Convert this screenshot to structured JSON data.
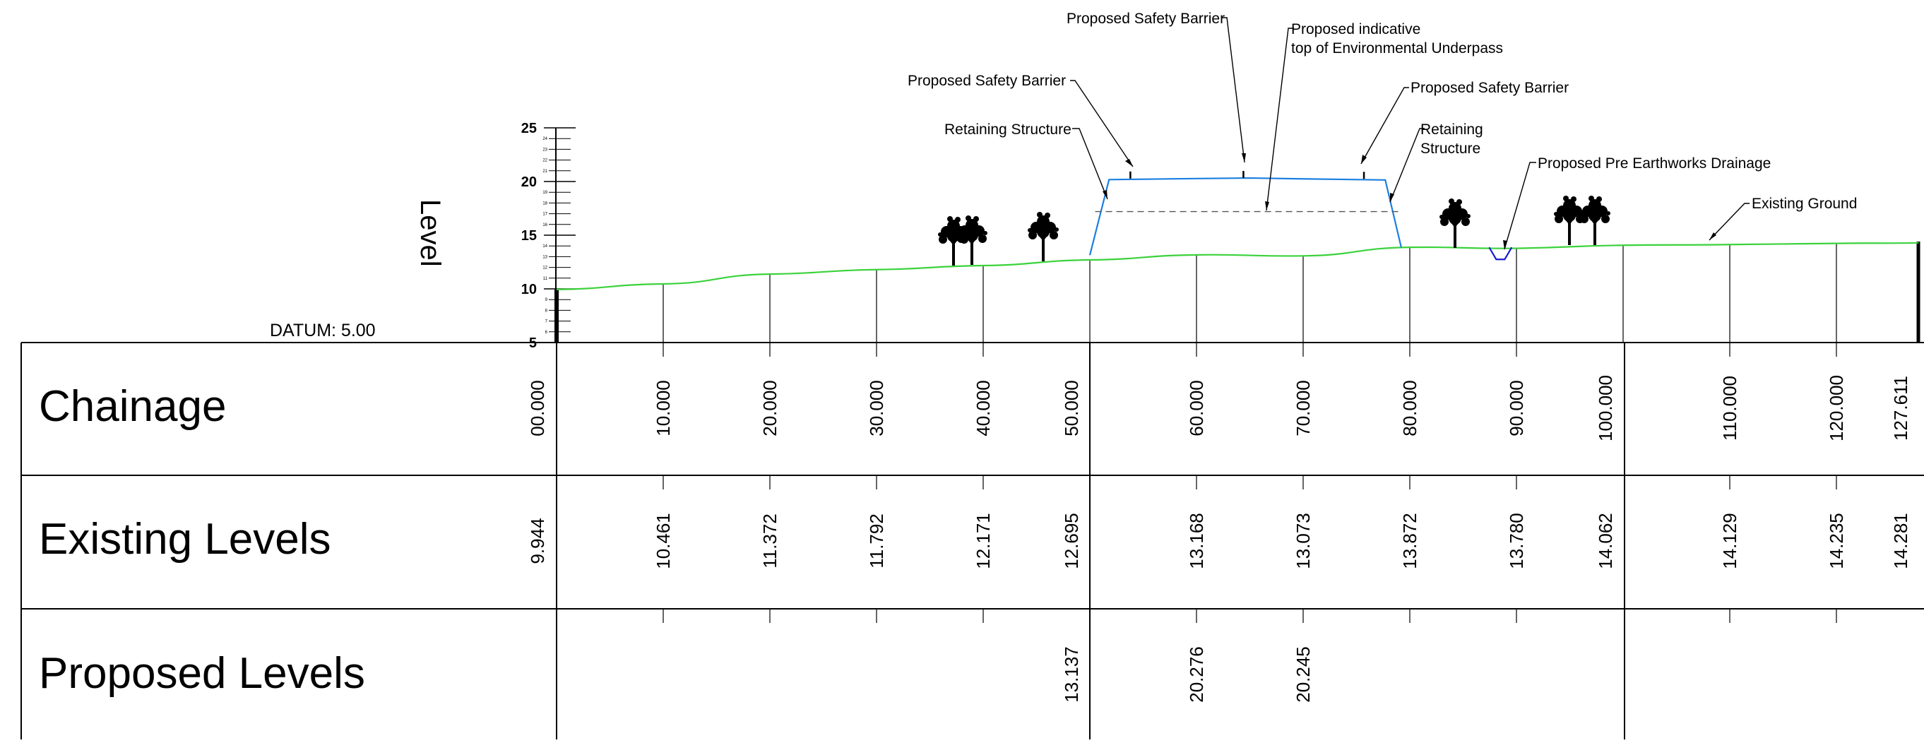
{
  "datum": {
    "label": "DATUM: 5.00",
    "value": 5.0
  },
  "axis": {
    "title": "Level",
    "min": 5,
    "max": 25,
    "major_ticks": [
      "5",
      "10",
      "15",
      "20",
      "25"
    ],
    "minor_step": 1
  },
  "table": {
    "row_labels": {
      "chainage": "Chainage",
      "existing": "Existing Levels",
      "proposed": "Proposed Levels"
    },
    "columns": [
      {
        "chainage": "00.000",
        "existing": "9.944",
        "proposed": ""
      },
      {
        "chainage": "10.000",
        "existing": "10.461",
        "proposed": ""
      },
      {
        "chainage": "20.000",
        "existing": "11.372",
        "proposed": ""
      },
      {
        "chainage": "30.000",
        "existing": "11.792",
        "proposed": ""
      },
      {
        "chainage": "40.000",
        "existing": "12.171",
        "proposed": ""
      },
      {
        "chainage": "50.000",
        "existing": "12.695",
        "proposed": "13.137"
      },
      {
        "chainage": "60.000",
        "existing": "13.168",
        "proposed": "20.276"
      },
      {
        "chainage": "70.000",
        "existing": "13.073",
        "proposed": "20.245"
      },
      {
        "chainage": "80.000",
        "existing": "13.872",
        "proposed": ""
      },
      {
        "chainage": "90.000",
        "existing": "13.780",
        "proposed": ""
      },
      {
        "chainage": "100.000",
        "existing": "14.062",
        "proposed": ""
      },
      {
        "chainage": "110.000",
        "existing": "14.129",
        "proposed": ""
      },
      {
        "chainage": "120.000",
        "existing": "14.235",
        "proposed": ""
      },
      {
        "chainage": "127.611",
        "existing": "14.281",
        "proposed": ""
      }
    ]
  },
  "annotations": {
    "barrier_left": "Proposed Safety Barrier",
    "barrier_top": "Proposed Safety Barrier",
    "barrier_right": "Proposed Safety Barrier",
    "underpass_line1": "Proposed indicative",
    "underpass_line2": "top of Environmental Underpass",
    "retaining_left": "Retaining Structure",
    "retaining_right_line1": "Retaining",
    "retaining_right_line2": "Structure",
    "drainage": "Proposed Pre Earthworks Drainage",
    "existing_ground": "Existing Ground"
  },
  "colors": {
    "existing_ground": "#3bd23b",
    "proposed_structure": "#1a7fe0",
    "drainage": "#1c1ccc",
    "lines": "#000000",
    "indicative": "#555555"
  }
}
